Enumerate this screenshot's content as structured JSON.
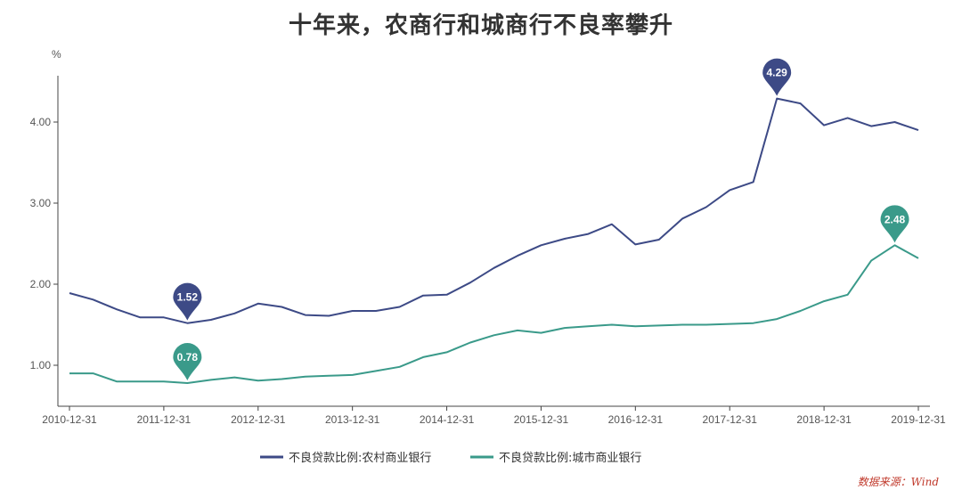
{
  "chart_data": {
    "type": "line",
    "title": "十年来，农商行和城商行不良率攀升",
    "ylabel": "%",
    "ylim": [
      0.5,
      4.6
    ],
    "y_ticks": [
      "1.00",
      "2.00",
      "3.00",
      "4.00"
    ],
    "y_tick_values": [
      1,
      2,
      3,
      4
    ],
    "x_tick_labels": [
      "2010-12-31",
      "2011-12-31",
      "2012-12-31",
      "2013-12-31",
      "2014-12-31",
      "2015-12-31",
      "2016-12-31",
      "2017-12-31",
      "2018-12-31",
      "2019-12-31"
    ],
    "legend_position": "bottom",
    "grid": false,
    "series": [
      {
        "name": "不良贷款比例:农村商业银行",
        "color": "#3d4a86",
        "values": [
          1.89,
          1.81,
          1.69,
          1.59,
          1.59,
          1.52,
          1.56,
          1.64,
          1.76,
          1.72,
          1.62,
          1.61,
          1.67,
          1.67,
          1.72,
          1.86,
          1.87,
          2.02,
          2.2,
          2.35,
          2.48,
          2.56,
          2.62,
          2.74,
          2.49,
          2.55,
          2.81,
          2.95,
          3.16,
          3.26,
          4.29,
          4.23,
          3.96,
          4.05,
          3.95,
          4.0,
          3.9
        ]
      },
      {
        "name": "不良贷款比例:城市商业银行",
        "color": "#3a9a8a",
        "values": [
          0.9,
          0.9,
          0.8,
          0.8,
          0.8,
          0.78,
          0.82,
          0.85,
          0.81,
          0.83,
          0.86,
          0.87,
          0.88,
          0.93,
          0.98,
          1.1,
          1.16,
          1.28,
          1.37,
          1.43,
          1.4,
          1.46,
          1.48,
          1.5,
          1.48,
          1.49,
          1.5,
          1.5,
          1.51,
          1.52,
          1.57,
          1.67,
          1.79,
          1.87,
          2.29,
          2.48,
          2.32
        ]
      }
    ],
    "annotations": [
      {
        "series": 0,
        "index": 5,
        "label": "1.52"
      },
      {
        "series": 0,
        "index": 30,
        "label": "4.29"
      },
      {
        "series": 1,
        "index": 5,
        "label": "0.78"
      },
      {
        "series": 1,
        "index": 35,
        "label": "2.48"
      }
    ]
  },
  "source": "数据来源：Wind"
}
